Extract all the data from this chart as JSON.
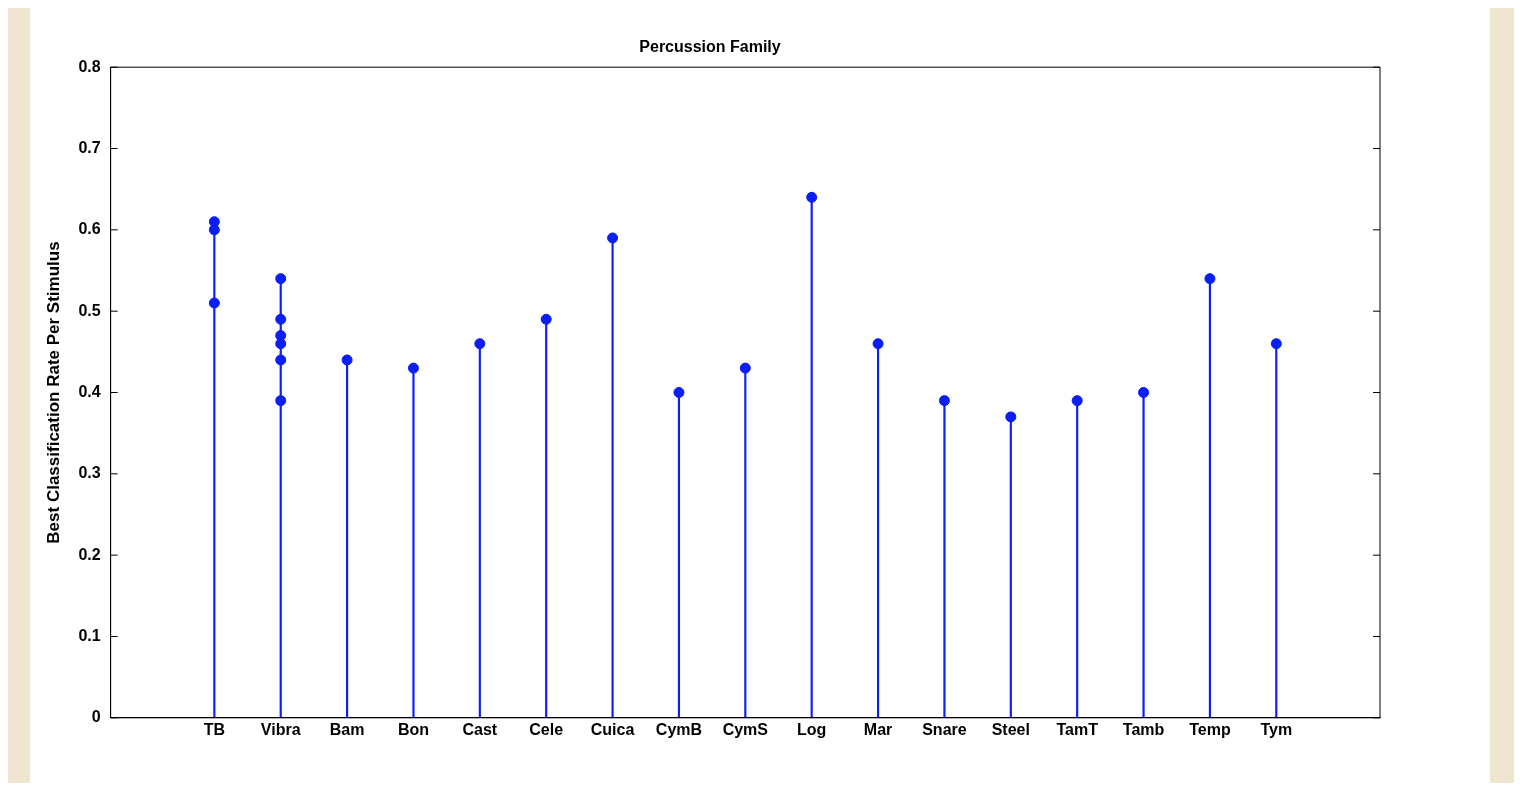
{
  "chart_data": {
    "type": "lollipop",
    "title": "Percussion Family",
    "ylabel": "Best Classification Rate Per Stimulus",
    "categories": [
      "TB",
      "Vibra",
      "Bam",
      "Bon",
      "Cast",
      "Cele",
      "Cuica",
      "CymB",
      "CymS",
      "Log",
      "Mar",
      "Snare",
      "Steel",
      "TamT",
      "Tamb",
      "Temp",
      "Tym"
    ],
    "series": [
      {
        "color": "#0a1ef5",
        "values": [
          0.61,
          0.54,
          0.44,
          0.43,
          0.46,
          0.49,
          0.59,
          0.4,
          0.43,
          0.64,
          0.46,
          0.39,
          0.37,
          0.39,
          0.4,
          0.54,
          0.46
        ]
      },
      {
        "type": "scatter",
        "color": "#0a1ef5",
        "x": [
          "TB",
          "TB",
          "Vibra",
          "Vibra",
          "Vibra",
          "Vibra",
          "Vibra"
        ],
        "values": [
          0.6,
          0.51,
          0.49,
          0.47,
          0.46,
          0.44,
          0.39
        ]
      }
    ],
    "ylim": [
      0,
      0.8
    ],
    "yticks": [
      0,
      0.1,
      0.2,
      0.3,
      0.4,
      0.5,
      0.6,
      0.7,
      0.8
    ],
    "grid": false,
    "marker": "circle"
  }
}
